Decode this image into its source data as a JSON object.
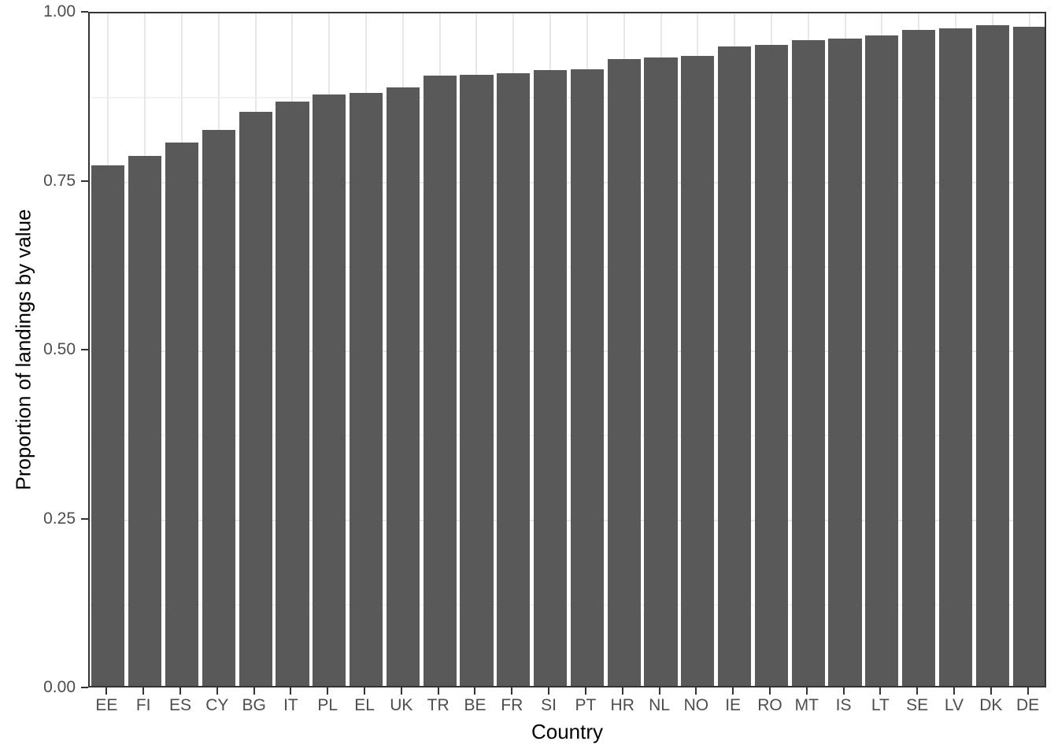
{
  "chart_data": {
    "type": "bar",
    "title": "",
    "xlabel": "Country",
    "ylabel": "Proportion of landings by value",
    "categories": [
      "EE",
      "FI",
      "ES",
      "CY",
      "BG",
      "IT",
      "PL",
      "EL",
      "UK",
      "TR",
      "BE",
      "FR",
      "SI",
      "PT",
      "HR",
      "NL",
      "NO",
      "IE",
      "RO",
      "MT",
      "IS",
      "LT",
      "SE",
      "LV",
      "DK",
      "DE"
    ],
    "values": [
      0.775,
      0.789,
      0.809,
      0.827,
      0.854,
      0.869,
      0.88,
      0.882,
      0.891,
      0.908,
      0.909,
      0.912,
      0.916,
      0.917,
      0.932,
      0.935,
      0.937,
      0.951,
      0.953,
      0.96,
      0.963,
      0.967,
      0.976,
      0.978,
      0.982,
      0.98
    ],
    "ylim": [
      0,
      1
    ],
    "y_major_ticks": [
      {
        "label": "0.00",
        "value": 0.0
      },
      {
        "label": "0.25",
        "value": 0.25
      },
      {
        "label": "0.50",
        "value": 0.5
      },
      {
        "label": "0.75",
        "value": 0.75
      },
      {
        "label": "1.00",
        "value": 1.0
      }
    ],
    "y_minor_gridlines": [
      0.125,
      0.375,
      0.625,
      0.875
    ],
    "legend_position": "none",
    "grid": "on",
    "colors": {
      "bar_fill": "#595959",
      "panel_border": "#333333",
      "grid_major": "#E8E8E8",
      "grid_minor": "#F2F2F2",
      "tick_mark": "#333333",
      "tick_label": "#4D4D4D",
      "axis_title": "#000000",
      "background": "#FFFFFF"
    }
  }
}
